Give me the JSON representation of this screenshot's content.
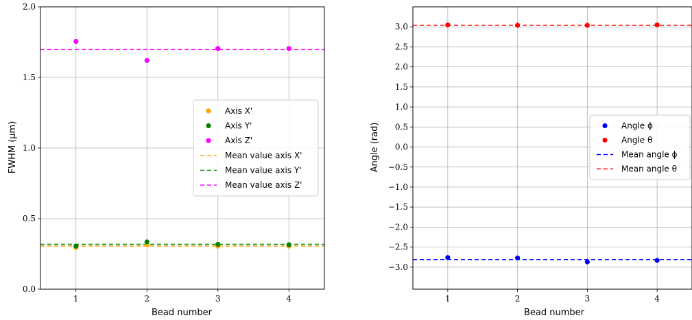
{
  "chart_data": [
    {
      "type": "scatter",
      "title": "",
      "xlabel": "Bead number",
      "ylabel": "FWHM (μm)",
      "xlim": [
        0.5,
        4.5
      ],
      "ylim": [
        0.0,
        2.0
      ],
      "xticks": [
        "1",
        "2",
        "3",
        "4"
      ],
      "yticks": [
        "0.0",
        "0.5",
        "1.0",
        "1.5",
        "2.0"
      ],
      "grid": true,
      "legend_position": "center-right",
      "x": [
        1,
        2,
        3,
        4
      ],
      "series": [
        {
          "name": "Axis X'",
          "color": "#ffa500",
          "values": [
            0.295,
            0.315,
            0.305,
            0.305
          ]
        },
        {
          "name": "Axis Y'",
          "color": "#008000",
          "values": [
            0.305,
            0.335,
            0.318,
            0.315
          ]
        },
        {
          "name": "Axis Z'",
          "color": "#ff00ff",
          "values": [
            1.755,
            1.62,
            1.705,
            1.705
          ]
        }
      ],
      "mean_lines": [
        {
          "name": "Mean value axis X'",
          "color": "#ffa500",
          "value": 0.305
        },
        {
          "name": "Mean value axis Y'",
          "color": "#008000",
          "value": 0.318
        },
        {
          "name": "Mean value axis Z'",
          "color": "#ff00ff",
          "value": 1.697
        }
      ]
    },
    {
      "type": "scatter",
      "title": "",
      "xlabel": "Bead number",
      "ylabel": "Angle (rad)",
      "xlim": [
        0.5,
        4.5
      ],
      "ylim": [
        -3.55,
        3.5
      ],
      "xticks": [
        "1",
        "2",
        "3",
        "4"
      ],
      "yticks": [
        "−3.0",
        "−2.5",
        "−2.0",
        "−1.5",
        "−1.0",
        "−0.5",
        "0.0",
        "0.5",
        "1.0",
        "1.5",
        "2.0",
        "2.5",
        "3.0"
      ],
      "grid": true,
      "legend_position": "center-right",
      "x": [
        1,
        2,
        3,
        4
      ],
      "series": [
        {
          "name": "Angle ϕ",
          "color": "#0000ff",
          "values": [
            -2.76,
            -2.77,
            -2.87,
            -2.83
          ]
        },
        {
          "name": "Angle θ",
          "color": "#ff0000",
          "values": [
            3.05,
            3.04,
            3.04,
            3.05
          ]
        }
      ],
      "mean_lines": [
        {
          "name": "Mean angle ϕ",
          "color": "#0000ff",
          "value": -2.81
        },
        {
          "name": "Mean angle θ",
          "color": "#ff0000",
          "value": 3.04
        }
      ]
    }
  ]
}
